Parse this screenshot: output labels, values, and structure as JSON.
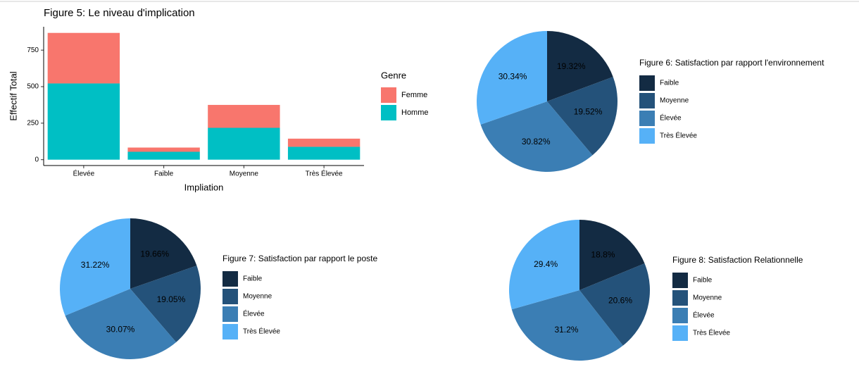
{
  "chart_data": [
    {
      "type": "bar",
      "stacked": true,
      "title": "Figure 5: Le niveau d'implication",
      "x_label": "Impliation",
      "y_label": "Effectif Total",
      "legend_title": "Genre",
      "categories": [
        "Élevée",
        "Faible",
        "Moyenne",
        "Très Élevée"
      ],
      "series": [
        {
          "name": "Femme",
          "color": "#F8766D",
          "values": [
            346,
            29,
            157,
            56
          ]
        },
        {
          "name": "Homme",
          "color": "#00BFC4",
          "values": [
            522,
            54,
            218,
            88
          ]
        }
      ],
      "ylim": [
        -40,
        910
      ],
      "yticks": [
        0,
        250,
        500,
        750
      ]
    },
    {
      "type": "pie",
      "title": "Figure 6: Satisfaction par rapport l'environnement",
      "categories": [
        "Faible",
        "Moyenne",
        "Élevée",
        "Très Élevée"
      ],
      "colors": [
        "#132B43",
        "#24527A",
        "#3B7EB4",
        "#56B1F7"
      ],
      "values": [
        19.32,
        19.52,
        30.82,
        30.34
      ],
      "value_labels": [
        "19.32%",
        "19.52%",
        "30.82%",
        "30.34%"
      ]
    },
    {
      "type": "pie",
      "title": "Figure 7: Satisfaction par rapport le poste",
      "categories": [
        "Faible",
        "Moyenne",
        "Élevée",
        "Très Élevée"
      ],
      "colors": [
        "#132B43",
        "#24527A",
        "#3B7EB4",
        "#56B1F7"
      ],
      "values": [
        19.66,
        19.05,
        30.07,
        31.22
      ],
      "value_labels": [
        "19.66%",
        "19.05%",
        "30.07%",
        "31.22%"
      ]
    },
    {
      "type": "pie",
      "title": "Figure 8: Satisfaction Relationnelle",
      "categories": [
        "Faible",
        "Moyenne",
        "Élevée",
        "Très Élevée"
      ],
      "colors": [
        "#132B43",
        "#24527A",
        "#3B7EB4",
        "#56B1F7"
      ],
      "values": [
        18.8,
        20.6,
        31.2,
        29.4
      ],
      "value_labels": [
        "18.8%",
        "20.6%",
        "31.2%",
        "29.4%"
      ]
    }
  ]
}
